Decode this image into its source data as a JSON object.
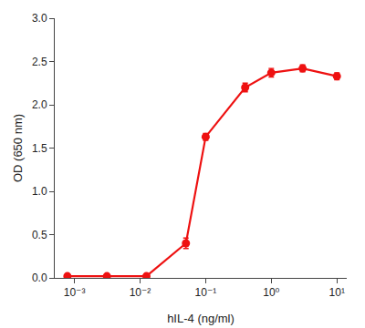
{
  "chart_data": {
    "type": "line",
    "xlabel": "hIL-4 (ng/ml)",
    "ylabel": "OD (650 nm)",
    "x": [
      0.00078125,
      0.003125,
      0.0125,
      0.05,
      0.1,
      0.4,
      1.0,
      3.0,
      10.0
    ],
    "values": [
      0.02,
      0.02,
      0.02,
      0.4,
      1.63,
      2.2,
      2.37,
      2.42,
      2.33
    ],
    "yerr": [
      0.02,
      0.015,
      0.015,
      0.06,
      0.04,
      0.05,
      0.05,
      0.04,
      0.04
    ],
    "color": "#ee1111",
    "marker": "circle",
    "line_style": "solid",
    "log": "x",
    "xlim": [
      0.0005011872336272725,
      14.125375446227544
    ],
    "xticks": [
      {
        "value": 0.001,
        "label": "10⁻³"
      },
      {
        "value": 0.01,
        "label": "10⁻²"
      },
      {
        "value": 0.1,
        "label": "10⁻¹"
      },
      {
        "value": 1,
        "label": "10⁰"
      },
      {
        "value": 10,
        "label": "10¹"
      }
    ],
    "ylim": [
      0.0,
      3.0
    ],
    "yticks": [
      {
        "value": 0.0,
        "label": "0.0"
      },
      0.5,
      {
        "value": 1.0,
        "label": "1.0"
      },
      1.5,
      {
        "value": 2.0,
        "label": "2.0"
      },
      2.5,
      {
        "value": 3.0,
        "label": "3.0"
      }
    ],
    "grid": false
  }
}
